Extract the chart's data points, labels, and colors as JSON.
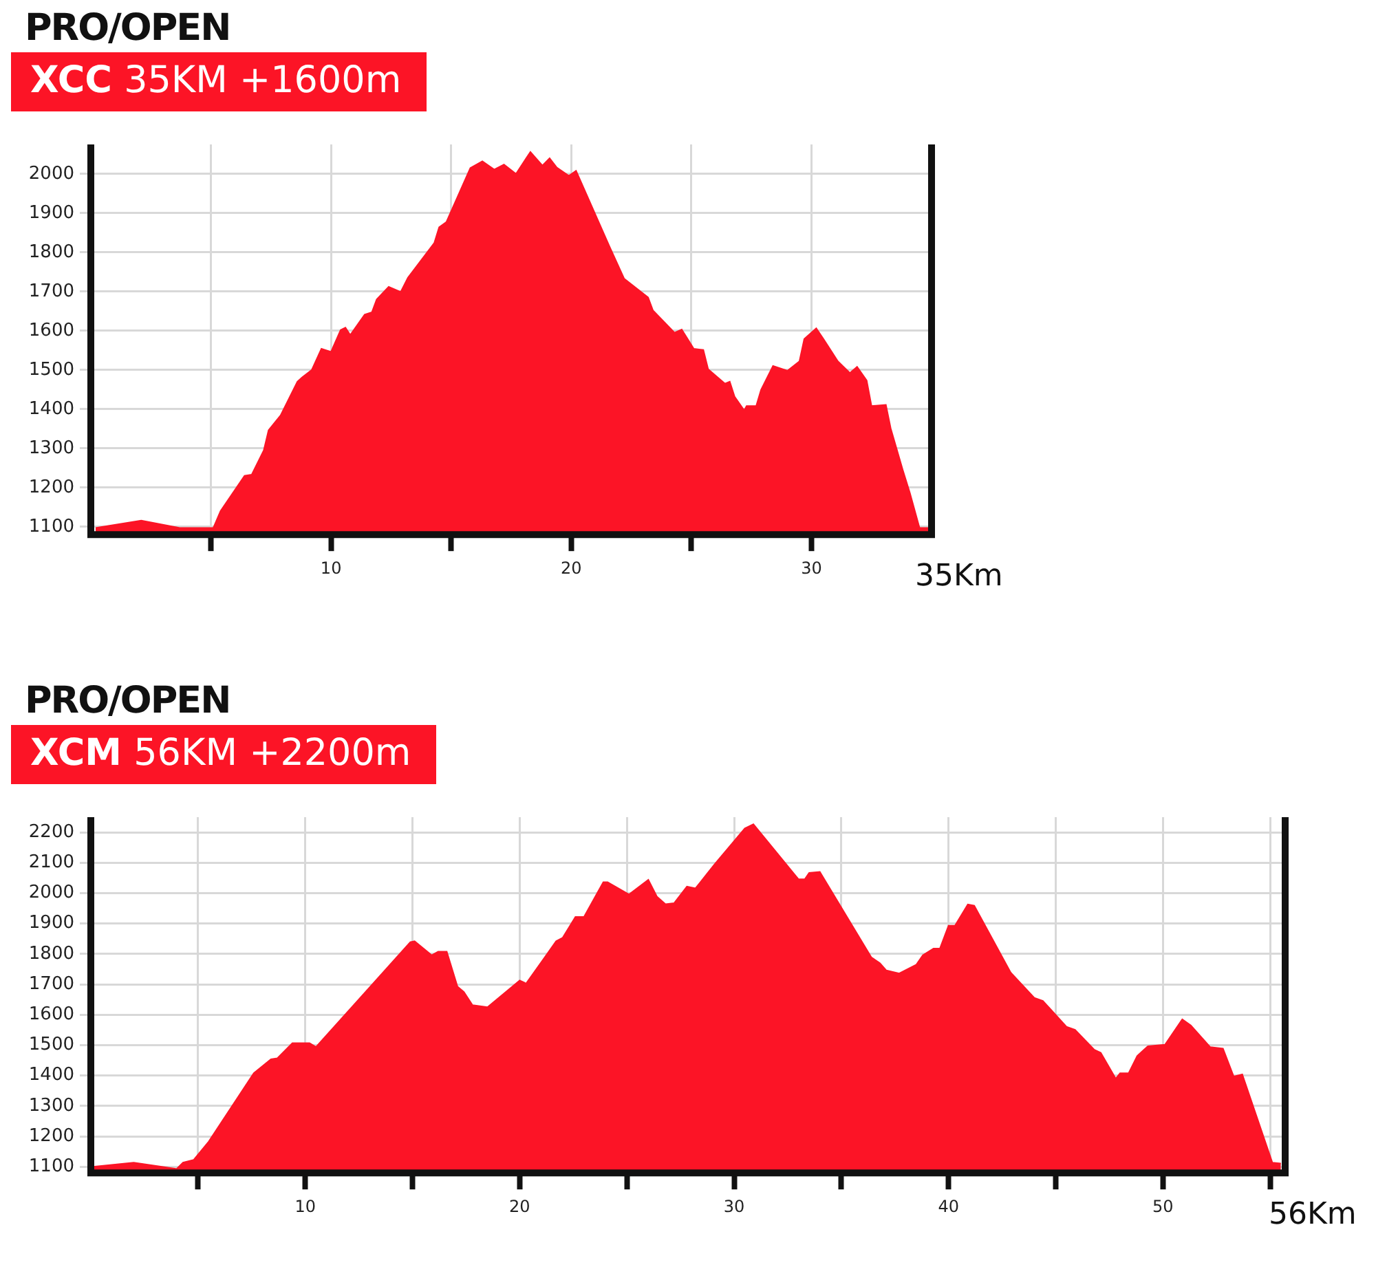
{
  "chart_data": [
    {
      "type": "area",
      "title": "PRO/OPEN",
      "subtitle": "XCC 35KM +1600m",
      "xlabel": "35Km",
      "color": "#fc1426",
      "grid": true,
      "xlim": [
        0,
        35
      ],
      "ylim": [
        1080,
        2075
      ],
      "xticks": [
        {
          "value": 5,
          "label": null
        },
        10,
        {
          "value": 15,
          "label": null
        },
        20,
        {
          "value": 25,
          "label": null
        },
        30
      ],
      "yticks": [
        1100,
        1200,
        1300,
        1400,
        1500,
        1600,
        1700,
        1800,
        1900,
        2000
      ],
      "x": [
        0.2,
        2.1,
        3.7,
        5.1,
        5.4,
        6.4,
        6.7,
        7.2,
        7.4,
        7.9,
        8.6,
        8.8,
        9.2,
        9.6,
        10,
        10.4,
        10.6,
        10.8,
        11.4,
        11.7,
        11.9,
        12.4,
        12.9,
        13.2,
        14.3,
        14.5,
        14.8,
        15.8,
        16.3,
        16.8,
        17.2,
        17.7,
        18.3,
        18.8,
        19.1,
        19.4,
        19.9,
        20.2,
        21.6,
        22.2,
        23.2,
        23.4,
        24.3,
        24.6,
        25.1,
        25.5,
        25.7,
        26.4,
        26.6,
        26.8,
        27.2,
        27.3,
        27.7,
        27.9,
        28.4,
        29,
        29.5,
        29.7,
        30.2,
        30.5,
        31.1,
        31.6,
        31.9,
        32.3,
        32.5,
        33.1,
        33.3,
        33.8,
        34.1,
        34.5,
        34.9
      ],
      "values": [
        1097,
        1116,
        1097,
        1097,
        1140,
        1230,
        1233,
        1295,
        1346,
        1384,
        1470,
        1481,
        1500,
        1554,
        1546,
        1602,
        1608,
        1589,
        1641,
        1647,
        1680,
        1712,
        1699,
        1735,
        1824,
        1864,
        1877,
        2015,
        2032,
        2011,
        2024,
        2000,
        2056,
        2021,
        2040,
        2016,
        1995,
        2008,
        1814,
        1733,
        1685,
        1652,
        1595,
        1603,
        1554,
        1551,
        1502,
        1465,
        1470,
        1432,
        1397,
        1408,
        1408,
        1449,
        1510,
        1498,
        1522,
        1579,
        1606,
        1579,
        1522,
        1492,
        1508,
        1473,
        1408,
        1411,
        1351,
        1245,
        1186,
        1097,
        1097
      ]
    },
    {
      "type": "area",
      "title": "PRO/OPEN",
      "subtitle": "XCM 56KM +2200m",
      "xlabel": "56Km",
      "color": "#fc1426",
      "grid": true,
      "xlim": [
        0,
        55.7
      ],
      "ylim": [
        1080,
        2250
      ],
      "xticks": [
        {
          "value": 5,
          "label": null
        },
        10,
        {
          "value": 15,
          "label": null
        },
        20,
        {
          "value": 25,
          "label": null
        },
        30,
        {
          "value": 35,
          "label": null
        },
        40,
        {
          "value": 45,
          "label": null
        },
        50,
        {
          "value": 55,
          "label": null
        }
      ],
      "yticks": [
        1100,
        1200,
        1300,
        1400,
        1500,
        1600,
        1700,
        1800,
        1900,
        2000,
        2100,
        2200
      ],
      "x": [
        0.1,
        2,
        4,
        4.3,
        4.8,
        5.5,
        7.6,
        8.4,
        8.7,
        9.4,
        10.2,
        10.5,
        14.9,
        15.1,
        15.9,
        16.2,
        16.6,
        17.1,
        17.4,
        17.8,
        18.5,
        20,
        20.3,
        21.1,
        21.7,
        22,
        22.6,
        23,
        23.9,
        24.1,
        25.1,
        26,
        26.4,
        26.8,
        27.2,
        27.8,
        28.2,
        29.1,
        30.5,
        30.9,
        33,
        33.3,
        33.5,
        34,
        36.4,
        36.8,
        37.1,
        37.7,
        38.5,
        38.8,
        39.3,
        39.6,
        40,
        40.3,
        40.9,
        41.2,
        42.9,
        44,
        44.4,
        45.5,
        45.9,
        46.8,
        47.1,
        47.8,
        48,
        48.4,
        48.8,
        49.3,
        50.1,
        50.9,
        51.3,
        52.2,
        52.8,
        53.3,
        53.7,
        55.1,
        55.5
      ],
      "values": [
        1100,
        1114,
        1093,
        1114,
        1123,
        1183,
        1408,
        1454,
        1457,
        1507,
        1507,
        1494,
        1839,
        1842,
        1796,
        1808,
        1808,
        1693,
        1675,
        1632,
        1625,
        1713,
        1703,
        1782,
        1842,
        1853,
        1922,
        1922,
        2036,
        2036,
        1996,
        2044,
        1989,
        1964,
        1967,
        2022,
        2016,
        2096,
        2213,
        2227,
        2046,
        2046,
        2067,
        2070,
        1789,
        1770,
        1746,
        1736,
        1765,
        1796,
        1818,
        1818,
        1893,
        1893,
        1963,
        1959,
        1739,
        1656,
        1646,
        1561,
        1551,
        1485,
        1475,
        1390,
        1408,
        1408,
        1465,
        1497,
        1502,
        1585,
        1565,
        1494,
        1489,
        1397,
        1404,
        1114,
        1111
      ]
    }
  ]
}
